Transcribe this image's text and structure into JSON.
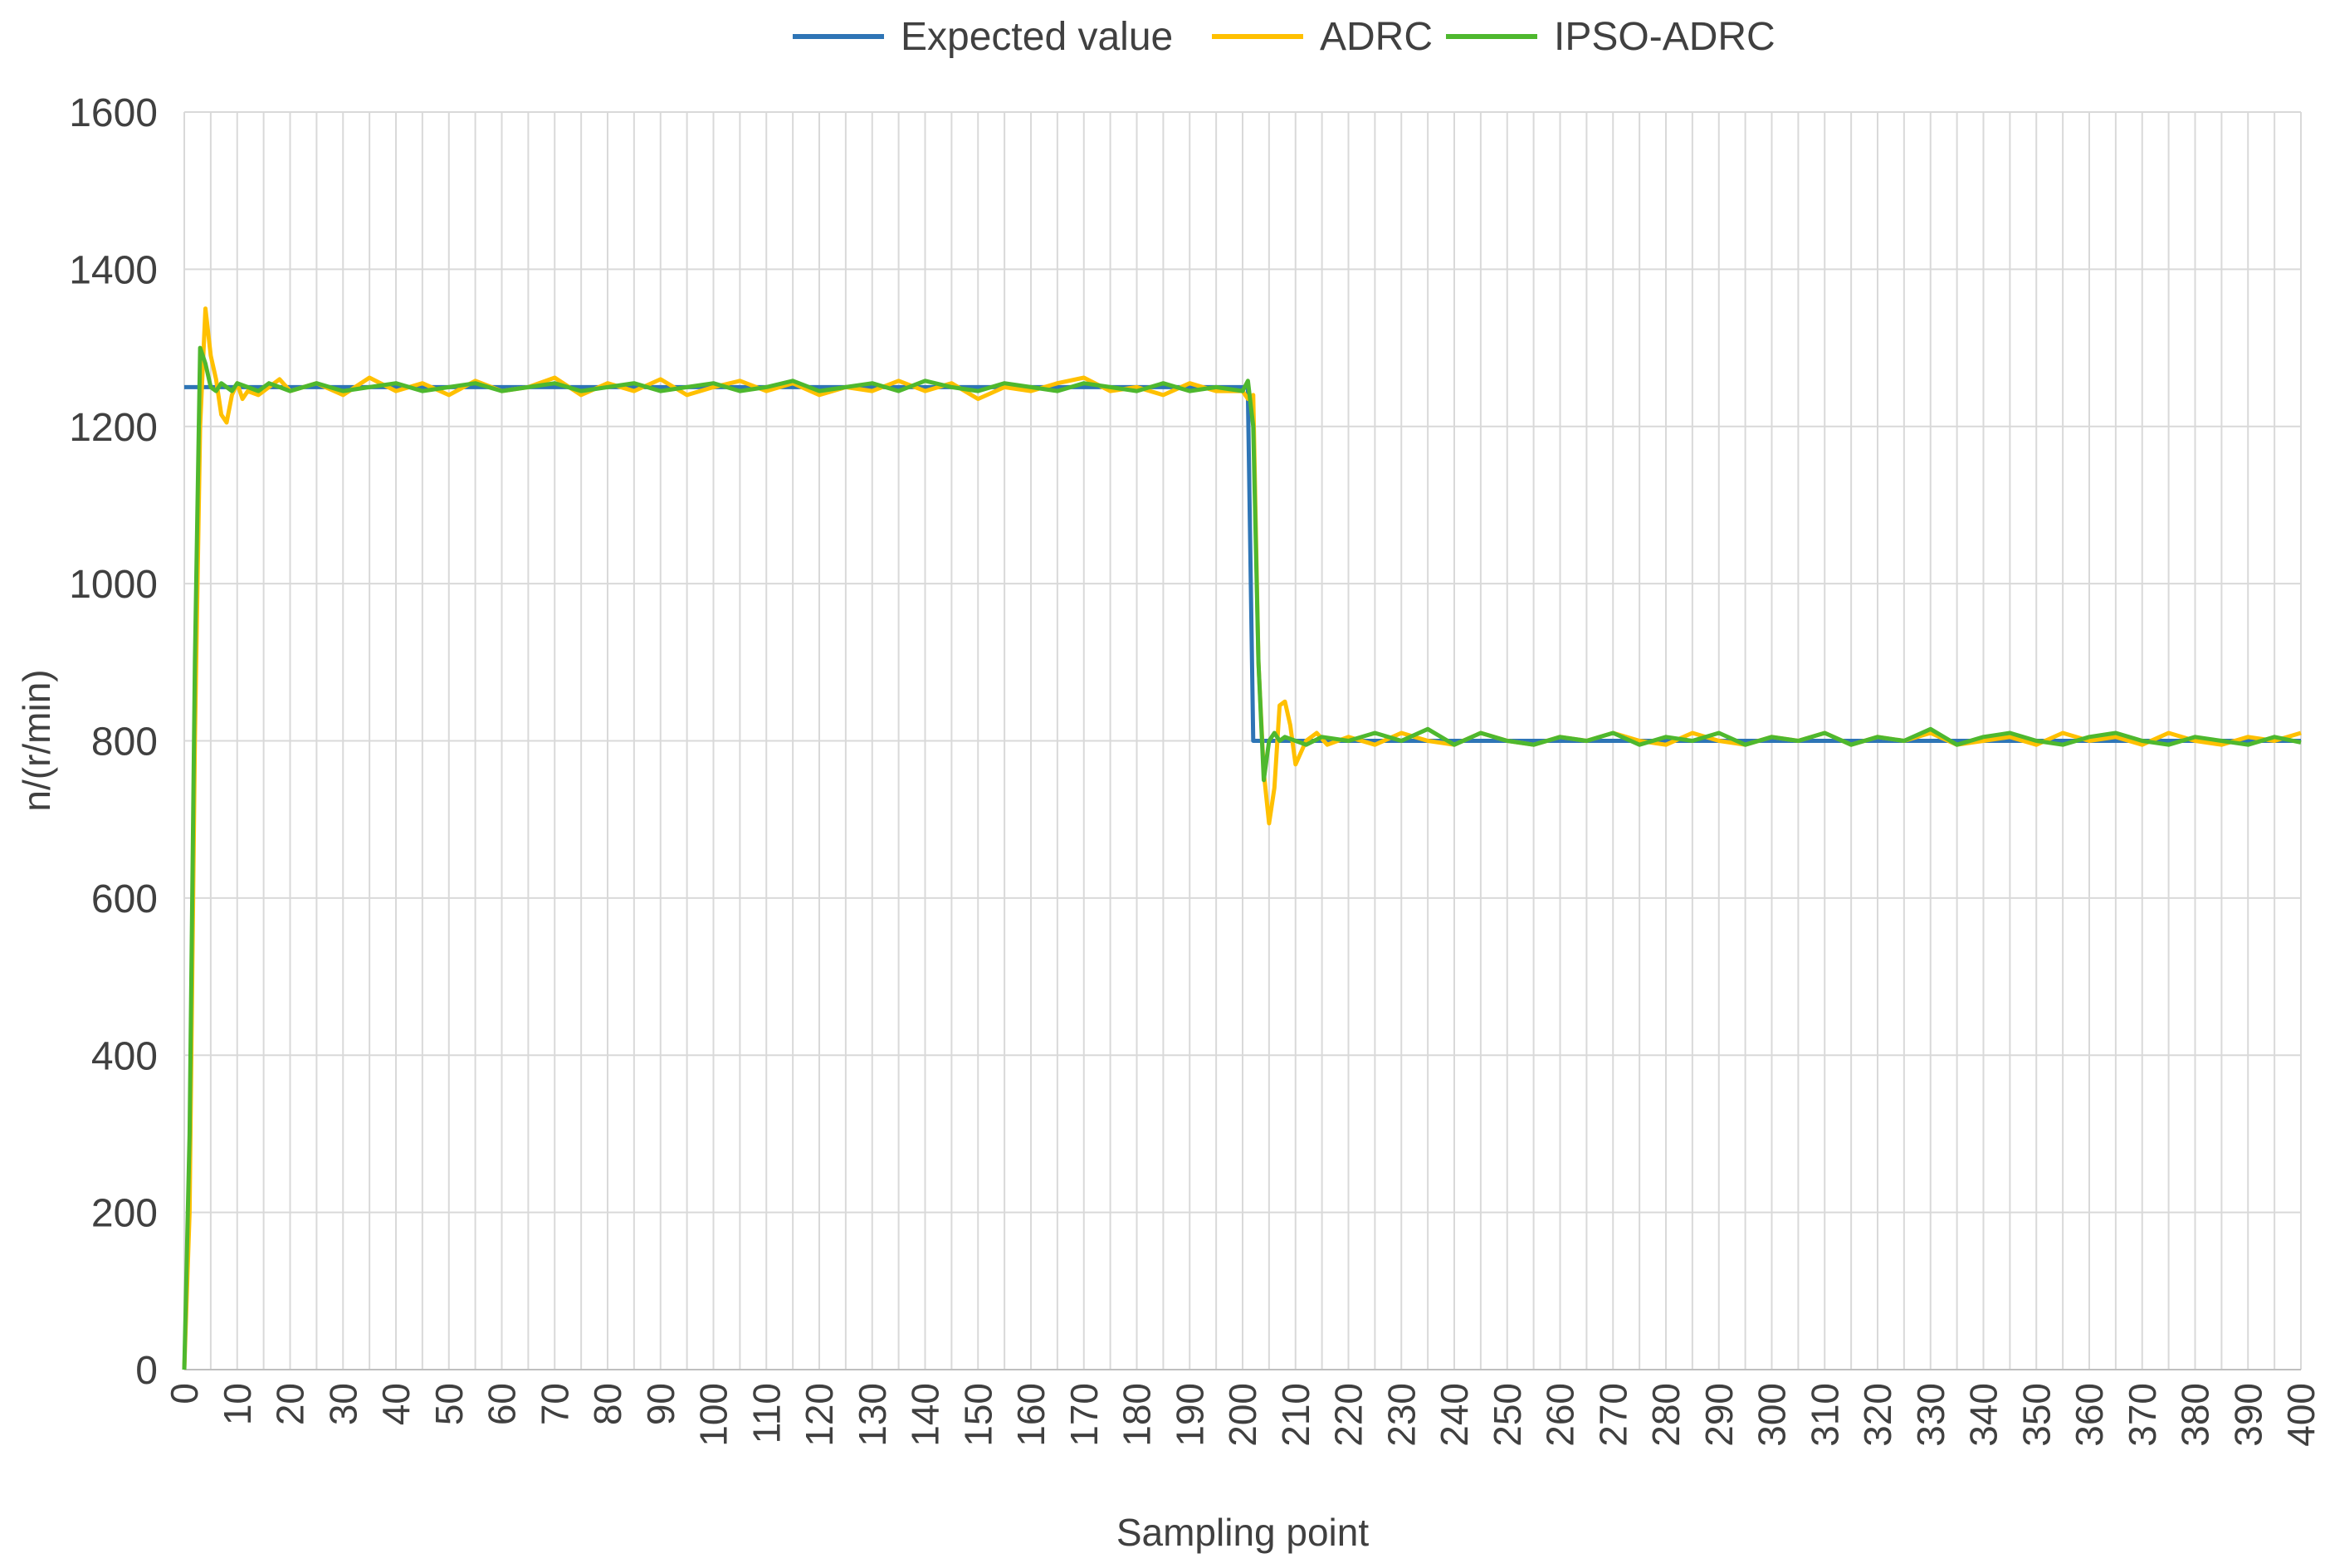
{
  "chart_data": {
    "type": "line",
    "title": "",
    "xlabel": "Sampling point",
    "ylabel": "n/(r/min)",
    "xlim": [
      0,
      400
    ],
    "ylim": [
      0,
      1600
    ],
    "x_ticks": [
      "0",
      "10",
      "20",
      "30",
      "40",
      "50",
      "60",
      "70",
      "80",
      "90",
      "100",
      "110",
      "120",
      "130",
      "140",
      "150",
      "160",
      "170",
      "180",
      "190",
      "200",
      "210",
      "220",
      "230",
      "240",
      "250",
      "260",
      "270",
      "280",
      "290",
      "300",
      "310",
      "320",
      "330",
      "340",
      "350",
      "360",
      "370",
      "380",
      "390",
      "400"
    ],
    "y_ticks": [
      "0",
      "200",
      "400",
      "600",
      "800",
      "1000",
      "1200",
      "1400",
      "1600"
    ],
    "grid": true,
    "legend_position": "top",
    "series": [
      {
        "name": "Expected value",
        "color": "#2E75B6",
        "x": [
          0,
          201,
          201,
          202,
          400
        ],
        "y": [
          1250,
          1250,
          1240,
          800,
          800
        ]
      },
      {
        "name": "ADRC",
        "color": "#FFC000",
        "x": [
          0,
          1,
          2,
          3,
          4,
          5,
          6,
          7,
          8,
          9,
          10,
          11,
          12,
          14,
          16,
          18,
          20,
          25,
          30,
          35,
          40,
          45,
          50,
          55,
          60,
          65,
          70,
          75,
          80,
          85,
          90,
          95,
          100,
          105,
          110,
          115,
          120,
          125,
          130,
          135,
          140,
          145,
          150,
          155,
          160,
          165,
          170,
          175,
          180,
          185,
          190,
          195,
          200,
          201,
          202,
          203,
          204,
          205,
          206,
          207,
          208,
          209,
          210,
          212,
          214,
          216,
          220,
          225,
          230,
          235,
          240,
          245,
          250,
          255,
          260,
          265,
          270,
          275,
          280,
          285,
          290,
          295,
          300,
          305,
          310,
          315,
          320,
          325,
          330,
          335,
          340,
          345,
          350,
          355,
          360,
          365,
          370,
          375,
          380,
          385,
          390,
          395,
          400
        ],
        "y": [
          0,
          200,
          800,
          1200,
          1350,
          1290,
          1260,
          1215,
          1205,
          1240,
          1255,
          1235,
          1245,
          1240,
          1250,
          1260,
          1245,
          1255,
          1240,
          1262,
          1245,
          1255,
          1240,
          1258,
          1245,
          1250,
          1262,
          1240,
          1255,
          1245,
          1260,
          1240,
          1250,
          1258,
          1245,
          1255,
          1240,
          1250,
          1245,
          1258,
          1245,
          1255,
          1235,
          1250,
          1245,
          1255,
          1262,
          1245,
          1250,
          1240,
          1255,
          1245,
          1245,
          1235,
          1240,
          900,
          760,
          695,
          740,
          845,
          850,
          820,
          770,
          800,
          810,
          795,
          805,
          795,
          810,
          800,
          795,
          810,
          800,
          795,
          805,
          800,
          810,
          800,
          795,
          810,
          800,
          795,
          805,
          800,
          810,
          795,
          805,
          800,
          810,
          795,
          800,
          805,
          795,
          810,
          800,
          805,
          795,
          810,
          800,
          795,
          805,
          800,
          810
        ]
      },
      {
        "name": "IPSO-ADRC",
        "color": "#4EB82E",
        "x": [
          0,
          1,
          2,
          3,
          4,
          5,
          6,
          7,
          8,
          9,
          10,
          12,
          14,
          16,
          18,
          20,
          25,
          30,
          35,
          40,
          45,
          50,
          55,
          60,
          65,
          70,
          75,
          80,
          85,
          90,
          95,
          100,
          105,
          110,
          115,
          120,
          125,
          130,
          135,
          140,
          145,
          150,
          155,
          160,
          165,
          170,
          175,
          180,
          185,
          190,
          195,
          200,
          201,
          202,
          203,
          204,
          205,
          206,
          207,
          208,
          210,
          212,
          215,
          220,
          225,
          230,
          235,
          240,
          245,
          250,
          255,
          260,
          265,
          270,
          275,
          280,
          285,
          290,
          295,
          300,
          305,
          310,
          315,
          320,
          325,
          330,
          335,
          340,
          345,
          350,
          355,
          360,
          365,
          370,
          375,
          380,
          385,
          390,
          395,
          400
        ],
        "y": [
          0,
          300,
          900,
          1300,
          1280,
          1250,
          1245,
          1255,
          1250,
          1245,
          1255,
          1250,
          1245,
          1255,
          1250,
          1245,
          1255,
          1245,
          1250,
          1255,
          1245,
          1250,
          1255,
          1245,
          1250,
          1255,
          1245,
          1250,
          1255,
          1245,
          1250,
          1255,
          1245,
          1250,
          1258,
          1245,
          1250,
          1255,
          1245,
          1258,
          1250,
          1245,
          1255,
          1250,
          1245,
          1255,
          1250,
          1245,
          1255,
          1245,
          1250,
          1245,
          1258,
          1200,
          900,
          750,
          800,
          810,
          800,
          805,
          800,
          795,
          805,
          800,
          810,
          800,
          815,
          795,
          810,
          800,
          795,
          805,
          800,
          810,
          795,
          805,
          800,
          810,
          795,
          805,
          800,
          810,
          795,
          805,
          800,
          815,
          795,
          805,
          810,
          800,
          795,
          805,
          810,
          800,
          795,
          805,
          800,
          795,
          805,
          798
        ]
      }
    ]
  }
}
